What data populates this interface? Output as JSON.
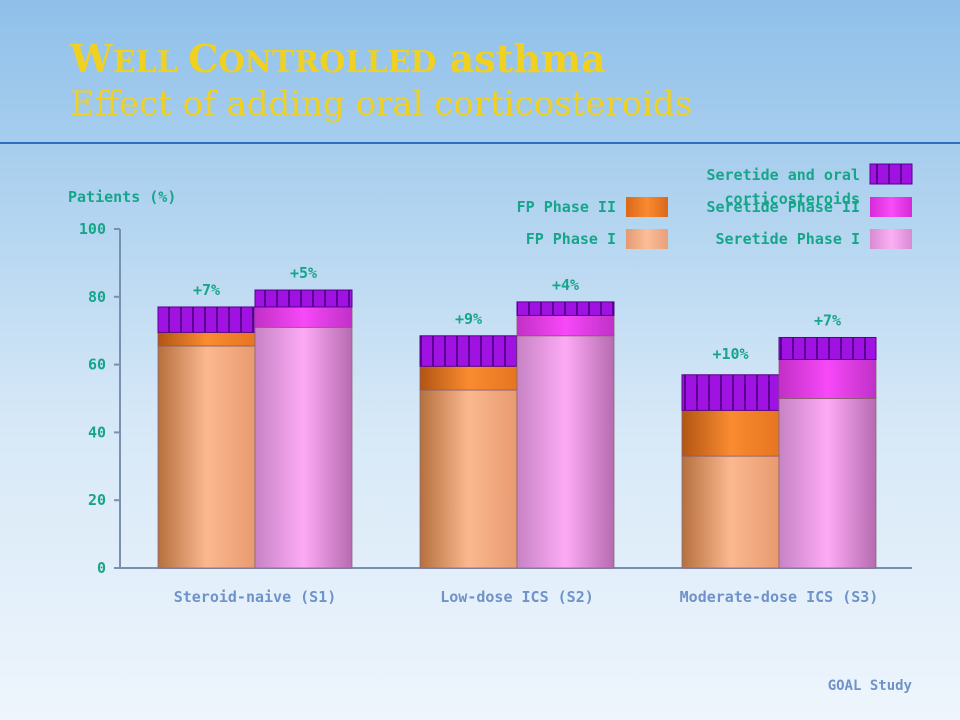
{
  "slide": {
    "title_caps_1": "W",
    "title_small_1": "ELL ",
    "title_caps_2": "C",
    "title_small_2": "ONTROLLED",
    "title_rest": " asthma",
    "subtitle": "Effect of adding oral corticosteroids",
    "footer": "GOAL Study"
  },
  "chart_data": {
    "type": "bar",
    "ylabel": "Patients (%)",
    "ylim": [
      0,
      100
    ],
    "yticks": [
      0,
      20,
      40,
      60,
      80,
      100
    ],
    "categories": [
      "Steroid-naive (S1)",
      "Low-dose ICS (S2)",
      "Moderate-dose ICS (S3)"
    ],
    "legend": [
      {
        "label": "FP Phase II",
        "color": "#f4812c",
        "style": "solid"
      },
      {
        "label": "FP Phase  I",
        "color": "#f8b590",
        "style": "solid"
      },
      {
        "label": "Seretide and oral corticosteroids",
        "color": "#9f10e0",
        "style": "striped"
      },
      {
        "label": "Seretide Phase II",
        "color": "#ee3ef0",
        "style": "solid"
      },
      {
        "label": "Seretide Phase  I",
        "color": "#f6a4ee",
        "style": "solid"
      }
    ],
    "groups": [
      {
        "category": "Steroid-naive (S1)",
        "fp": {
          "phase1": 65.5,
          "phase2": 69.5,
          "oral": 77,
          "increase_label": "+7%"
        },
        "seretide": {
          "phase1": 71,
          "phase2": 77,
          "oral": 82,
          "increase_label": "+5%"
        }
      },
      {
        "category": "Low-dose ICS (S2)",
        "fp": {
          "phase1": 52.5,
          "phase2": 59.5,
          "oral": 68.5,
          "increase_label": "+9%"
        },
        "seretide": {
          "phase1": 68.5,
          "phase2": 74.5,
          "oral": 78.5,
          "increase_label": "+4%"
        }
      },
      {
        "category": "Moderate-dose ICS (S3)",
        "fp": {
          "phase1": 33,
          "phase2": 46.5,
          "oral": 57,
          "increase_label": "+10%"
        },
        "seretide": {
          "phase1": 50,
          "phase2": 61.5,
          "oral": 68,
          "increase_label": "+7%"
        }
      }
    ]
  }
}
